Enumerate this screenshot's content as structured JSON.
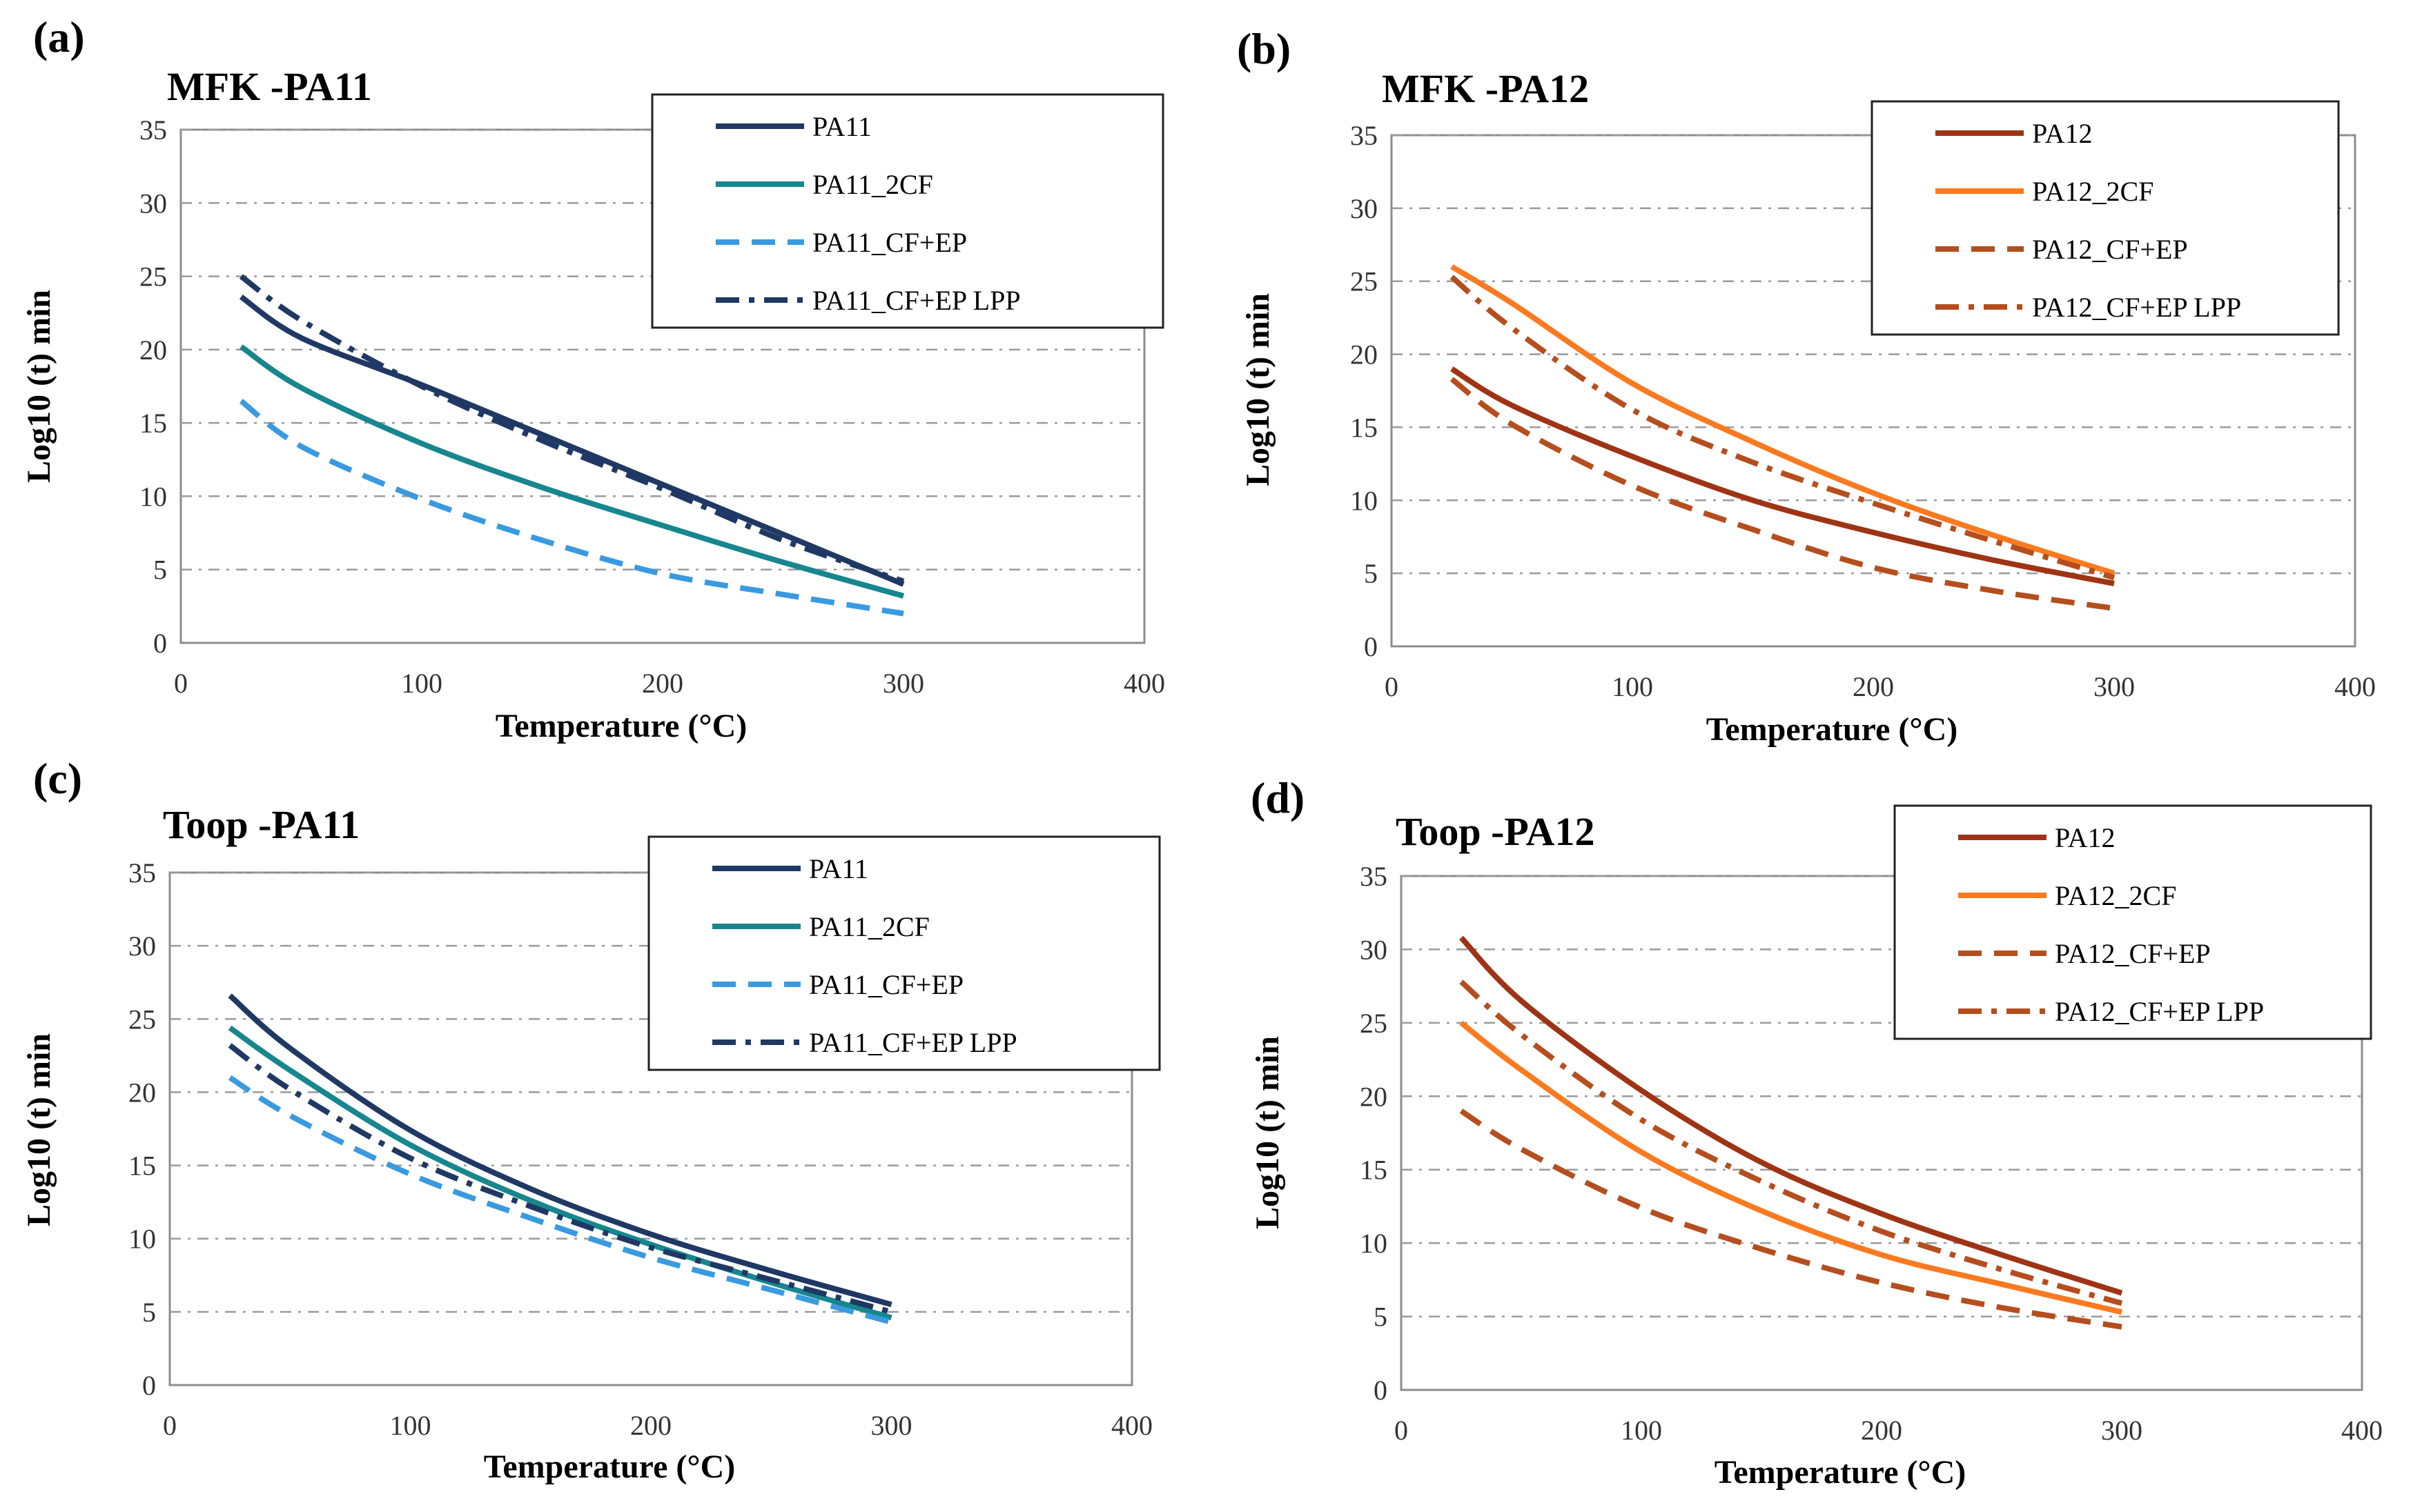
{
  "figure": {
    "panel_labels": [
      "(a)",
      "(b)",
      "(c)",
      "(d)"
    ]
  },
  "chart_data": [
    {
      "type": "line",
      "panel": "(a)",
      "title": "MFK -PA11",
      "xlabel": "Temperature (°C)",
      "ylabel": "Log10 (t) min",
      "xlim": [
        0,
        400
      ],
      "ylim": [
        0,
        35
      ],
      "xticks": [
        0,
        100,
        200,
        300,
        400
      ],
      "yticks": [
        0,
        5,
        10,
        15,
        20,
        25,
        30,
        35
      ],
      "grid": "horizontal dash-dot",
      "legend_position": "top-right",
      "series": [
        {
          "name": "PA11",
          "color": "#1f3864",
          "style": "solid",
          "x": [
            25,
            50,
            100,
            150,
            200,
            250,
            300
          ],
          "y": [
            23.6,
            20.8,
            17.6,
            14.2,
            10.8,
            7.4,
            4.0
          ]
        },
        {
          "name": "PA11_2CF",
          "color": "#17868f",
          "style": "solid",
          "x": [
            25,
            50,
            100,
            150,
            200,
            250,
            300
          ],
          "y": [
            20.2,
            17.4,
            13.6,
            10.6,
            8.0,
            5.5,
            3.2
          ]
        },
        {
          "name": "PA11_CF+EP",
          "color": "#3a9ae0",
          "style": "dashed",
          "x": [
            25,
            50,
            100,
            150,
            200,
            250,
            300
          ],
          "y": [
            16.5,
            13.4,
            9.8,
            7.0,
            4.7,
            3.3,
            2.0
          ]
        },
        {
          "name": "PA11_CF+EP LPP",
          "color": "#1f3864",
          "style": "dashdot",
          "x": [
            25,
            50,
            100,
            150,
            200,
            250,
            300
          ],
          "y": [
            25.0,
            22.0,
            17.5,
            13.8,
            10.5,
            7.0,
            4.2
          ]
        }
      ]
    },
    {
      "type": "line",
      "panel": "(b)",
      "title": "MFK -PA12",
      "xlabel": "Temperature (°C)",
      "ylabel": "Log10 (t) min",
      "xlim": [
        0,
        400
      ],
      "ylim": [
        0,
        35
      ],
      "xticks": [
        0,
        100,
        200,
        300,
        400
      ],
      "yticks": [
        0,
        5,
        10,
        15,
        20,
        25,
        30,
        35
      ],
      "grid": "horizontal dash-dot",
      "legend_position": "top-right",
      "series": [
        {
          "name": "PA12",
          "color": "#9e3415",
          "style": "solid",
          "x": [
            25,
            50,
            100,
            150,
            200,
            250,
            300
          ],
          "y": [
            19.0,
            16.5,
            13.0,
            10.0,
            7.8,
            5.9,
            4.3
          ]
        },
        {
          "name": "PA12_2CF",
          "color": "#fb7a20",
          "style": "solid",
          "x": [
            25,
            50,
            100,
            150,
            200,
            250,
            300
          ],
          "y": [
            26.0,
            23.5,
            18.0,
            14.0,
            10.5,
            7.6,
            5.0
          ]
        },
        {
          "name": "PA12_CF+EP",
          "color": "#b54e1e",
          "style": "dashed",
          "x": [
            25,
            50,
            100,
            150,
            200,
            250,
            300
          ],
          "y": [
            18.3,
            15.2,
            11.0,
            8.0,
            5.4,
            3.8,
            2.6
          ]
        },
        {
          "name": "PA12_CF+EP LPP",
          "color": "#b54e1e",
          "style": "dashdot",
          "x": [
            25,
            50,
            100,
            150,
            200,
            250,
            300
          ],
          "y": [
            25.3,
            21.8,
            16.2,
            12.6,
            9.8,
            7.2,
            4.7
          ]
        }
      ]
    },
    {
      "type": "line",
      "panel": "(c)",
      "title": "Toop -PA11",
      "xlabel": "Temperature (°C)",
      "ylabel": "Log10 (t) min",
      "xlim": [
        0,
        400
      ],
      "ylim": [
        0,
        35
      ],
      "xticks": [
        0,
        100,
        200,
        300,
        400
      ],
      "yticks": [
        0,
        5,
        10,
        15,
        20,
        25,
        30,
        35
      ],
      "grid": "horizontal dash-dot",
      "legend_position": "top-right",
      "series": [
        {
          "name": "PA11",
          "color": "#1f3864",
          "style": "solid",
          "x": [
            25,
            50,
            100,
            150,
            200,
            250,
            300
          ],
          "y": [
            26.6,
            23.0,
            17.4,
            13.4,
            10.3,
            7.8,
            5.5
          ]
        },
        {
          "name": "PA11_2CF",
          "color": "#17868f",
          "style": "solid",
          "x": [
            25,
            50,
            100,
            150,
            200,
            250,
            300
          ],
          "y": [
            24.4,
            21.5,
            16.4,
            12.6,
            9.6,
            7.0,
            4.6
          ]
        },
        {
          "name": "PA11_CF+EP",
          "color": "#3a9ae0",
          "style": "dashed",
          "x": [
            25,
            50,
            100,
            150,
            200,
            250,
            300
          ],
          "y": [
            21.0,
            18.4,
            14.4,
            11.4,
            8.7,
            6.5,
            4.3
          ]
        },
        {
          "name": "PA11_CF+EP LPP",
          "color": "#1f3864",
          "style": "dashdot",
          "x": [
            25,
            50,
            100,
            150,
            200,
            250,
            300
          ],
          "y": [
            23.2,
            20.2,
            15.5,
            12.2,
            9.4,
            7.2,
            5.0
          ]
        }
      ]
    },
    {
      "type": "line",
      "panel": "(d)",
      "title": "Toop -PA12",
      "xlabel": "Temperature (°C)",
      "ylabel": "Log10 (t) min",
      "xlim": [
        0,
        400
      ],
      "ylim": [
        0,
        35
      ],
      "xticks": [
        0,
        100,
        200,
        300,
        400
      ],
      "yticks": [
        0,
        5,
        10,
        15,
        20,
        25,
        30,
        35
      ],
      "grid": "horizontal dash-dot",
      "legend_position": "top-right",
      "series": [
        {
          "name": "PA12",
          "color": "#9e3415",
          "style": "solid",
          "x": [
            25,
            50,
            100,
            150,
            200,
            250,
            300
          ],
          "y": [
            30.8,
            26.5,
            20.4,
            15.5,
            12.0,
            9.2,
            6.6
          ]
        },
        {
          "name": "PA12_2CF",
          "color": "#fb7a20",
          "style": "solid",
          "x": [
            25,
            50,
            100,
            150,
            200,
            250,
            300
          ],
          "y": [
            25.0,
            21.8,
            16.2,
            12.2,
            9.2,
            7.2,
            5.3
          ]
        },
        {
          "name": "PA12_CF+EP",
          "color": "#b54e1e",
          "style": "dashed",
          "x": [
            25,
            50,
            100,
            150,
            200,
            250,
            300
          ],
          "y": [
            19.0,
            16.4,
            12.4,
            9.6,
            7.3,
            5.6,
            4.3
          ]
        },
        {
          "name": "PA12_CF+EP LPP",
          "color": "#b54e1e",
          "style": "dashdot",
          "x": [
            25,
            50,
            100,
            150,
            200,
            250,
            300
          ],
          "y": [
            27.8,
            24.2,
            18.4,
            14.2,
            10.8,
            8.2,
            5.9
          ]
        }
      ]
    }
  ]
}
